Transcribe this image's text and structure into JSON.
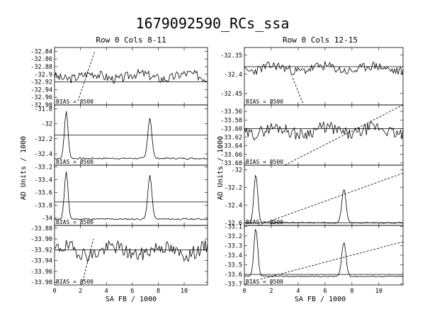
{
  "figure": {
    "title": "1679092590_RCs_ssa",
    "left_subtitle": "Row 0 Cols 8-11",
    "right_subtitle": "Row 0 Cols 12-15",
    "ylabel": "AD Units / 1000",
    "xlabel": "SA FB / 1000",
    "bias_label": "BIAS = 8500"
  },
  "chart_data": [
    {
      "type": "line",
      "column": "left",
      "row": 0,
      "xlim": [
        0,
        11.8
      ],
      "ylim": [
        -32.98,
        -32.83
      ],
      "yticks": [
        -32.84,
        -32.86,
        -32.88,
        -32.9,
        -32.92,
        -32.94,
        -32.96,
        -32.98
      ],
      "ytick_labels": [
        "-32.84",
        "-32.86",
        "-32.88",
        "-32.9",
        "-32.92",
        "-32.94",
        "-32.96",
        "-32.98"
      ],
      "hline": -32.92,
      "dashed": [
        [
          1.8,
          -32.97
        ],
        [
          3.1,
          -32.84
        ]
      ],
      "shape": "noise",
      "base": -32.905,
      "noise": 0.012,
      "seed": 3,
      "bias_label": "BIAS = 8500"
    },
    {
      "type": "line",
      "column": "left",
      "row": 1,
      "xlim": [
        0,
        11.8
      ],
      "ylim": [
        -32.55,
        -31.75
      ],
      "yticks": [
        -31.8,
        -32.0,
        -32.2,
        -32.4
      ],
      "ytick_labels": [
        "-31.8",
        "-32",
        "-32.2",
        "-32.4"
      ],
      "hline": -32.15,
      "shape": "peaks",
      "base": -32.46,
      "noise": 0.01,
      "seed": 7,
      "peaks": [
        {
          "x": 0.9,
          "h": 0.62,
          "w": 0.2
        },
        {
          "x": 7.35,
          "h": 0.54,
          "w": 0.22
        }
      ],
      "bias_label": "BIAS = 8500"
    },
    {
      "type": "line",
      "column": "left",
      "row": 2,
      "xlim": [
        0,
        11.8
      ],
      "ylim": [
        -34.12,
        -33.17
      ],
      "yticks": [
        -33.2,
        -33.4,
        -33.6,
        -33.8,
        -34.0
      ],
      "ytick_labels": [
        "-33.2",
        "-33.4",
        "-33.6",
        "-33.8",
        "-34"
      ],
      "hline": -33.75,
      "shape": "peaks",
      "base": -34.02,
      "noise": 0.012,
      "seed": 11,
      "peaks": [
        {
          "x": 0.9,
          "h": 0.74,
          "w": 0.2
        },
        {
          "x": 7.35,
          "h": 0.69,
          "w": 0.22
        }
      ],
      "bias_label": "BIAS = 8500"
    },
    {
      "type": "line",
      "column": "left",
      "row": 3,
      "xlim": [
        0,
        11.8
      ],
      "ylim": [
        -33.985,
        -33.875
      ],
      "yticks": [
        -33.88,
        -33.9,
        -33.92,
        -33.94,
        -33.96,
        -33.98
      ],
      "ytick_labels": [
        "-33.88",
        "-33.90",
        "-33.92",
        "-33.94",
        "-33.96",
        "-33.98"
      ],
      "hline": -33.92,
      "dashed": [
        [
          2.1,
          -33.985
        ],
        [
          3.0,
          -33.9
        ]
      ],
      "shape": "noise",
      "base": -33.922,
      "noise": 0.013,
      "seed": 19,
      "bias_label": "BIAS = 8500"
    },
    {
      "type": "line",
      "column": "right",
      "row": 0,
      "xlim": [
        0,
        11.8
      ],
      "ylim": [
        -32.48,
        -32.33
      ],
      "yticks": [
        -32.35,
        -32.4,
        -32.45
      ],
      "ytick_labels": [
        "-32.35",
        "-32.4",
        "-32.45"
      ],
      "hline": -32.38,
      "dashed": [
        [
          3.6,
          -32.41
        ],
        [
          4.4,
          -32.48
        ]
      ],
      "shape": "noise",
      "base": -32.385,
      "noise": 0.012,
      "seed": 23,
      "bias_label": "BIAS = 8500"
    },
    {
      "type": "line",
      "column": "right",
      "row": 1,
      "xlim": [
        0,
        11.8
      ],
      "ylim": [
        -33.685,
        -33.545
      ],
      "yticks": [
        -33.56,
        -33.58,
        -33.6,
        -33.62,
        -33.64,
        -33.66,
        -33.68
      ],
      "ytick_labels": [
        "-33.56",
        "-33.58",
        "-33.60",
        "-33.62",
        "-33.64",
        "-33.66",
        "-33.68"
      ],
      "hline": -33.6,
      "dashed": [
        [
          3.0,
          -33.685
        ],
        [
          11.8,
          -33.545
        ]
      ],
      "shape": "noise",
      "base": -33.605,
      "noise": 0.014,
      "seed": 29,
      "bias_label": "BIAS = 8500"
    },
    {
      "type": "line",
      "column": "right",
      "row": 2,
      "xlim": [
        0,
        11.8
      ],
      "ylim": [
        -32.63,
        -31.95
      ],
      "yticks": [
        -32.0,
        -32.2,
        -32.4,
        -32.6
      ],
      "ytick_labels": [
        "-32",
        "-32.2",
        "-32.4",
        "-32.6"
      ],
      "hline": -32.6,
      "dashed": [
        [
          1.0,
          -32.63
        ],
        [
          11.8,
          -32.04
        ]
      ],
      "shape": "peaks",
      "base": -32.6,
      "noise": 0.006,
      "seed": 31,
      "peaks": [
        {
          "x": 0.85,
          "h": 0.55,
          "w": 0.2
        },
        {
          "x": 7.4,
          "h": 0.38,
          "w": 0.22
        }
      ],
      "bias_label": "BIAS = 8500"
    },
    {
      "type": "line",
      "column": "right",
      "row": 3,
      "xlim": [
        0,
        11.8
      ],
      "ylim": [
        -33.71,
        -33.09
      ],
      "yticks": [
        -33.1,
        -33.2,
        -33.3,
        -33.4,
        -33.5,
        -33.6,
        -33.7
      ],
      "ytick_labels": [
        "-33.1",
        "-33.2",
        "-33.3",
        "-33.4",
        "-33.5",
        "-33.6",
        "-33.7"
      ],
      "hline": -33.6,
      "dashed": [
        [
          1.2,
          -33.65
        ],
        [
          11.8,
          -33.26
        ]
      ],
      "shape": "peaks",
      "base": -33.62,
      "noise": 0.006,
      "seed": 37,
      "peaks": [
        {
          "x": 0.85,
          "h": 0.5,
          "w": 0.2
        },
        {
          "x": 7.4,
          "h": 0.36,
          "w": 0.22
        }
      ],
      "bias_label": "BIAS = 8500"
    }
  ],
  "xticks": [
    0,
    2,
    4,
    6,
    8,
    10
  ],
  "xtick_labels": [
    "0",
    "2",
    "4",
    "6",
    "8",
    "10"
  ]
}
